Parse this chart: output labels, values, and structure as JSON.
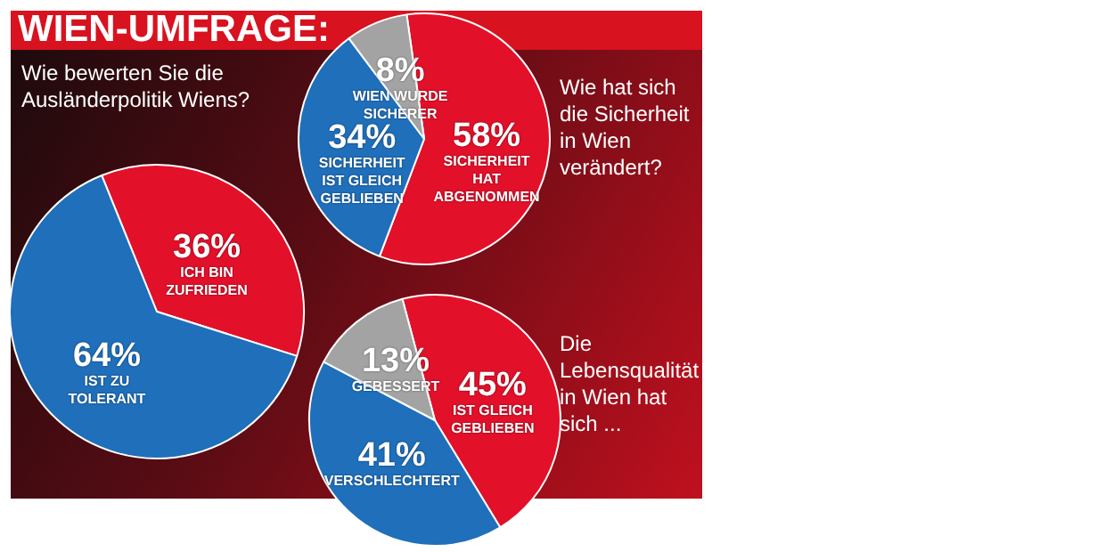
{
  "chart_data": [
    {
      "type": "pie",
      "title": "WIEN-UMFRAGE:",
      "subtitle": "Wie bewerten Sie die Ausländerpolitik Wiens?",
      "categories": [
        "ICH BIN ZUFRIEDEN",
        "IST ZU TOLERANT"
      ],
      "values": [
        36,
        64
      ],
      "value_labels": [
        "36%",
        "64%"
      ],
      "colors": [
        "#e3102a",
        "#1f6fba"
      ],
      "legend": false
    },
    {
      "type": "pie",
      "title": "Wie hat sich die Sicherheit in Wien verändert?",
      "categories": [
        "SICHERHEIT HAT ABGENOMMEN",
        "SICHERHEIT IST GLEICH GEBLIEBEN",
        "WIEN WURDE SICHERER"
      ],
      "values": [
        58,
        34,
        8
      ],
      "value_labels": [
        "58%",
        "34%",
        "8%"
      ],
      "colors": [
        "#e3102a",
        "#1f6fba",
        "#a3a3a3"
      ],
      "legend": false
    },
    {
      "type": "pie",
      "title": "Die Lebensqualität in Wien hat sich ...",
      "categories": [
        "IST GLEICH GEBLIEBEN",
        "VERSCHLECHTERT",
        "GEBESSERT"
      ],
      "values": [
        45,
        41,
        13
      ],
      "value_labels": [
        "45%",
        "41%",
        "13%"
      ],
      "colors": [
        "#e3102a",
        "#1f6fba",
        "#a3a3a3"
      ],
      "legend": false
    }
  ]
}
